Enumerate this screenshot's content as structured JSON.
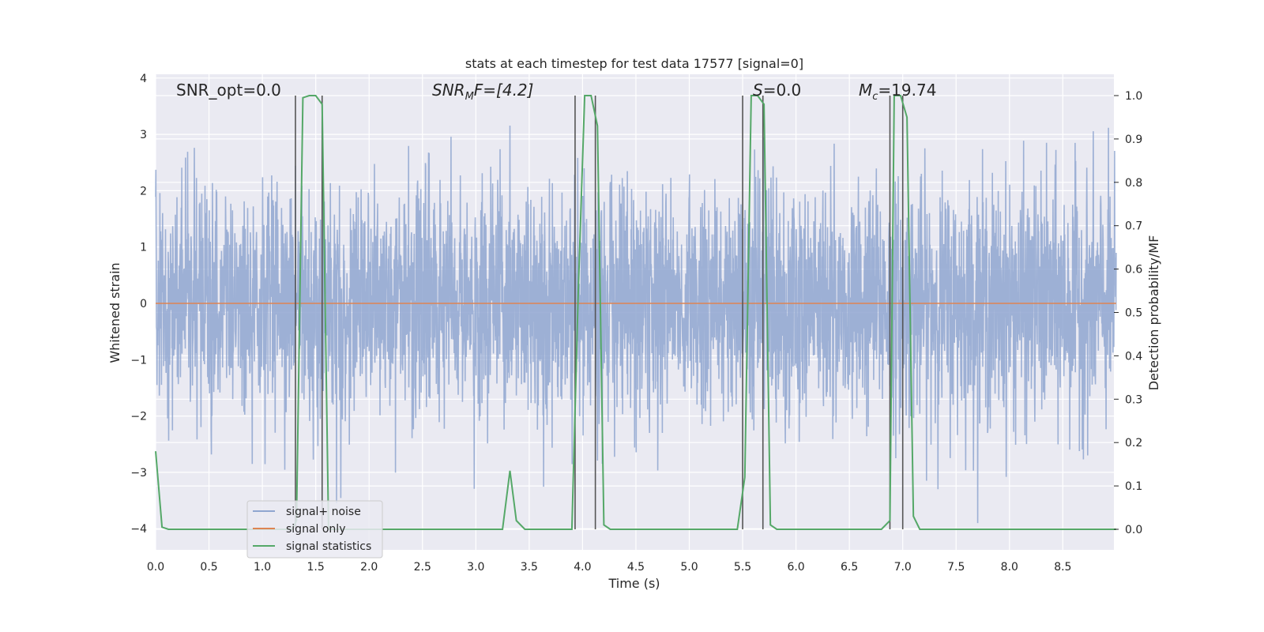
{
  "chart_data": {
    "type": "line",
    "title": "stats at each timestep for test data 17577 [signal=0]",
    "xlabel": "Time (s)",
    "ylabel_left": "Whitened strain",
    "ylabel_right": "Detection probability/MF",
    "xlim": [
      0.0,
      9.0
    ],
    "ylim_left": [
      -4.4,
      4.1
    ],
    "ylim_right": [
      -0.05,
      1.05
    ],
    "x_ticks": [
      "0.0",
      "0.5",
      "1.0",
      "1.5",
      "2.0",
      "2.5",
      "3.0",
      "3.5",
      "4.0",
      "4.5",
      "5.0",
      "5.5",
      "6.0",
      "6.5",
      "7.0",
      "7.5",
      "8.0",
      "8.5"
    ],
    "y_left_ticks": [
      "4",
      "3",
      "2",
      "1",
      "0",
      "−1",
      "−2",
      "−3",
      "−4"
    ],
    "y_right_ticks": [
      "1.0",
      "0.9",
      "0.8",
      "0.7",
      "0.6",
      "0.5",
      "0.4",
      "0.3",
      "0.2",
      "0.1",
      "0.0"
    ],
    "grid": true,
    "legend_position": "lower-left",
    "annotations": {
      "snr_opt": "SNR_opt=0.0",
      "snr_mf_main": "SNR",
      "snr_mf_sub": "M",
      "snr_mf_rest": "F=[4.2]",
      "s_label": "S",
      "s_value": "=0.0",
      "mc_main": "M",
      "mc_sub": "c",
      "mc_value": "=19.74"
    },
    "series": [
      {
        "name": "signal+ noise",
        "color": "#8fa6d0",
        "axis": "left",
        "envelope_hint": "dense whitened noise, mostly within ±2.5, peaks near ±3.5"
      },
      {
        "name": "signal only",
        "color": "#dd8452",
        "axis": "left",
        "x": [
          0.0,
          9.0
        ],
        "y": [
          0.0,
          0.0
        ]
      },
      {
        "name": "signal statistics",
        "color": "#55a868",
        "axis": "right",
        "x": [
          0.0,
          0.06,
          0.12,
          1.28,
          1.32,
          1.38,
          1.44,
          1.5,
          1.56,
          1.62,
          3.25,
          3.32,
          3.38,
          3.46,
          3.9,
          3.96,
          4.02,
          4.08,
          4.14,
          4.2,
          4.26,
          5.45,
          5.52,
          5.58,
          5.64,
          5.7,
          5.76,
          5.82,
          6.8,
          6.88,
          6.92,
          6.98,
          7.04,
          7.1,
          7.16,
          9.0
        ],
        "y": [
          0.18,
          0.005,
          0.0,
          0.0,
          0.02,
          0.995,
          1.0,
          1.0,
          0.98,
          0.0,
          0.0,
          0.135,
          0.02,
          0.0,
          0.0,
          0.55,
          1.0,
          1.0,
          0.93,
          0.01,
          0.0,
          0.0,
          0.12,
          1.0,
          1.0,
          0.98,
          0.01,
          0.0,
          0.0,
          0.02,
          1.0,
          1.0,
          0.95,
          0.03,
          0.0,
          0.0
        ]
      }
    ],
    "vertical_markers": [
      1.31,
      1.56,
      3.93,
      4.12,
      5.5,
      5.69,
      6.88,
      7.0
    ],
    "marker_color": "#555555"
  }
}
